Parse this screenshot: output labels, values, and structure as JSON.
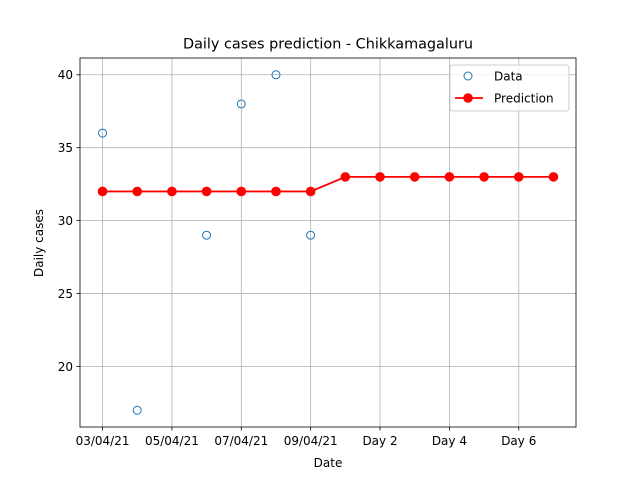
{
  "chart_data": {
    "type": "line",
    "title": "Daily cases prediction - Chikkamagaluru",
    "xlabel": "Date",
    "ylabel": "Daily cases",
    "x_tick_labels": [
      "03/04/21",
      "05/04/21",
      "07/04/21",
      "09/04/21",
      "Day 2",
      "Day 4",
      "Day 6"
    ],
    "x_tick_positions": [
      0,
      2,
      4,
      6,
      8,
      10,
      12
    ],
    "y_ticks": [
      20,
      25,
      30,
      35,
      40
    ],
    "xlim": [
      -0.65,
      13.65
    ],
    "ylim": [
      15.85,
      41.15
    ],
    "grid": true,
    "legend_position": "top-right",
    "series": [
      {
        "name": "Data",
        "style": "markers-hollow",
        "color": "#1f77b4",
        "x": [
          0,
          1,
          2,
          3,
          4,
          5,
          6
        ],
        "y": [
          36,
          17,
          32,
          29,
          38,
          40,
          29
        ]
      },
      {
        "name": "Prediction",
        "style": "line-markers",
        "color": "#ff0000",
        "x": [
          0,
          1,
          2,
          3,
          4,
          5,
          6,
          7,
          8,
          9,
          10,
          11,
          12,
          13
        ],
        "y": [
          32,
          32,
          32,
          32,
          32,
          32,
          32,
          33,
          33,
          33,
          33,
          33,
          33,
          33
        ]
      }
    ]
  }
}
